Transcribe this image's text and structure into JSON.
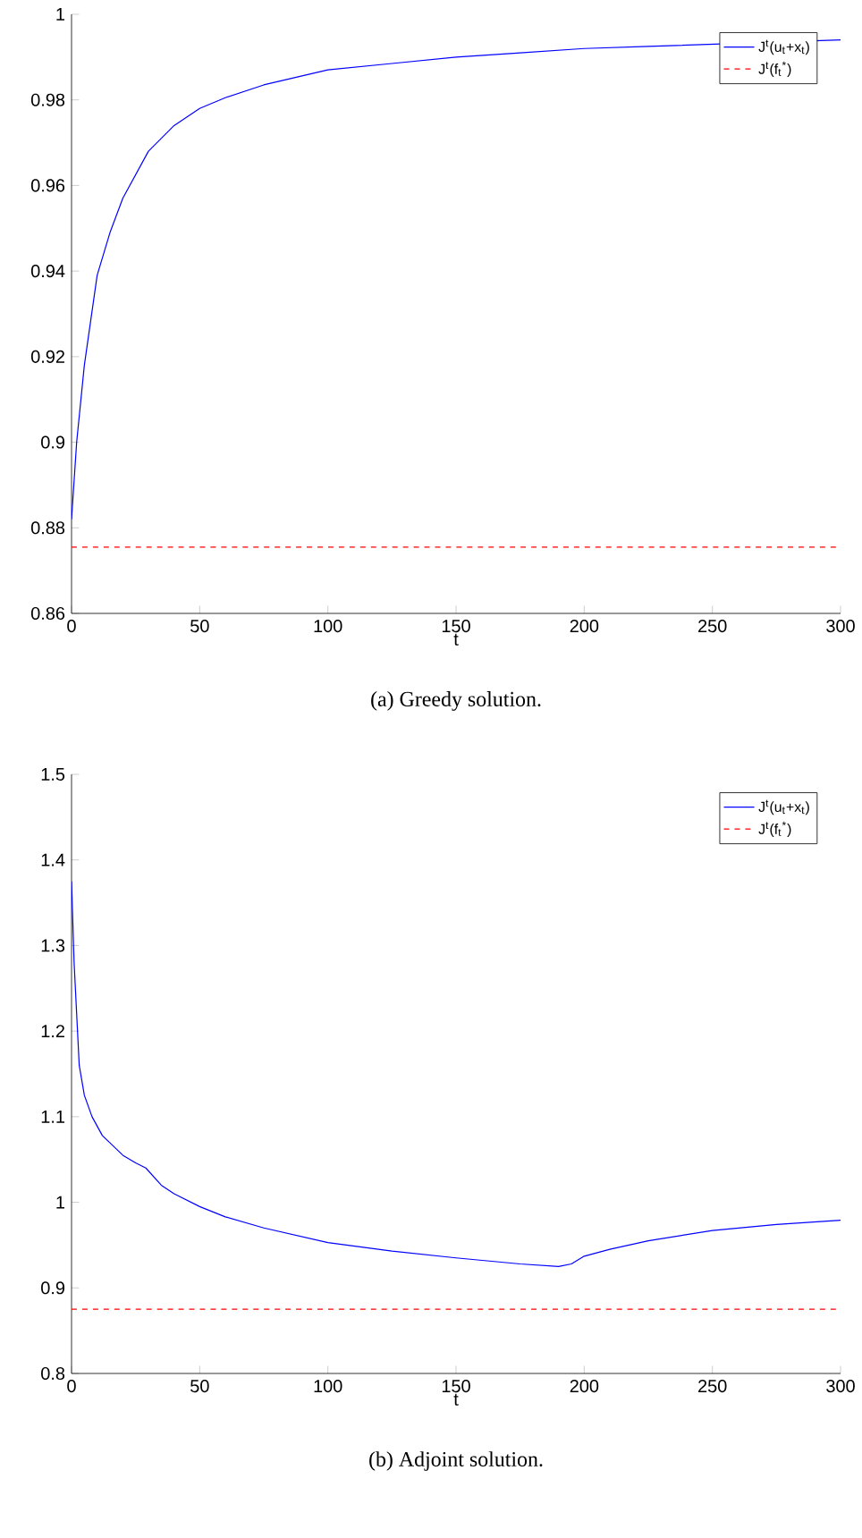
{
  "chart_data": [
    {
      "type": "line",
      "xlabel": "t",
      "xlim": [
        0,
        300
      ],
      "xticks": [
        0,
        50,
        100,
        150,
        200,
        250,
        300
      ],
      "ylim": [
        0.86,
        1
      ],
      "yticks": [
        0.86,
        0.88,
        0.9,
        0.92,
        0.94,
        0.96,
        0.98,
        1
      ],
      "legend": "top right",
      "annotations": [
        "(a) Greedy solution."
      ],
      "series": [
        {
          "name": "J$^{t}$(u$_{t}$+x$_{t}$)",
          "color": "#0000ff",
          "line_style": "solid",
          "x": [
            0,
            2,
            5,
            10,
            15,
            20,
            30,
            40,
            50,
            60,
            75,
            100,
            125,
            150,
            175,
            200,
            225,
            250,
            275,
            300
          ],
          "values": [
            0.882,
            0.9,
            0.918,
            0.939,
            0.949,
            0.957,
            0.968,
            0.974,
            0.978,
            0.9805,
            0.9835,
            0.987,
            0.9885,
            0.99,
            0.991,
            0.992,
            0.9925,
            null,
            null,
            0.994
          ]
        },
        {
          "name": "J$^{t}$(f$_{t}$$^{*}$)",
          "color": "#ff0000",
          "line_style": "dashed",
          "x": [
            0,
            300
          ],
          "values": [
            0.8755,
            0.8755
          ]
        }
      ]
    },
    {
      "type": "line",
      "xlabel": "t",
      "xlim": [
        0,
        300
      ],
      "xticks": [
        0,
        50,
        100,
        150,
        200,
        250,
        300
      ],
      "ylim": [
        0.8,
        1.5
      ],
      "yticks": [
        0.8,
        0.9,
        1,
        1.1,
        1.2,
        1.3,
        1.4,
        1.5
      ],
      "legend": "top right",
      "annotations": [
        "(b) Adjoint solution."
      ],
      "series": [
        {
          "name": "J$^{t}$(u$_{t}$+x$_{t}$)",
          "color": "#0000ff",
          "line_style": "solid",
          "x": [
            0,
            1,
            2,
            3,
            5,
            8,
            12,
            20,
            25,
            29,
            35,
            40,
            50,
            60,
            75,
            100,
            125,
            150,
            175,
            190,
            195,
            200,
            210,
            225,
            250,
            275,
            300
          ],
          "values": [
            1.375,
            1.28,
            1.22,
            1.16,
            1.125,
            1.1,
            1.078,
            1.055,
            1.046,
            1.04,
            1.02,
            1.01,
            0.995,
            0.983,
            0.97,
            0.953,
            0.943,
            0.935,
            0.928,
            0.925,
            0.928,
            0.937,
            0.945,
            0.955,
            0.967,
            0.974,
            0.979
          ]
        },
        {
          "name": "J$^{t}$(f$_{t}$$^{*}$)",
          "color": "#ff0000",
          "line_style": "dashed",
          "x": [
            0,
            300
          ],
          "values": [
            0.875,
            0.875
          ]
        }
      ]
    }
  ]
}
